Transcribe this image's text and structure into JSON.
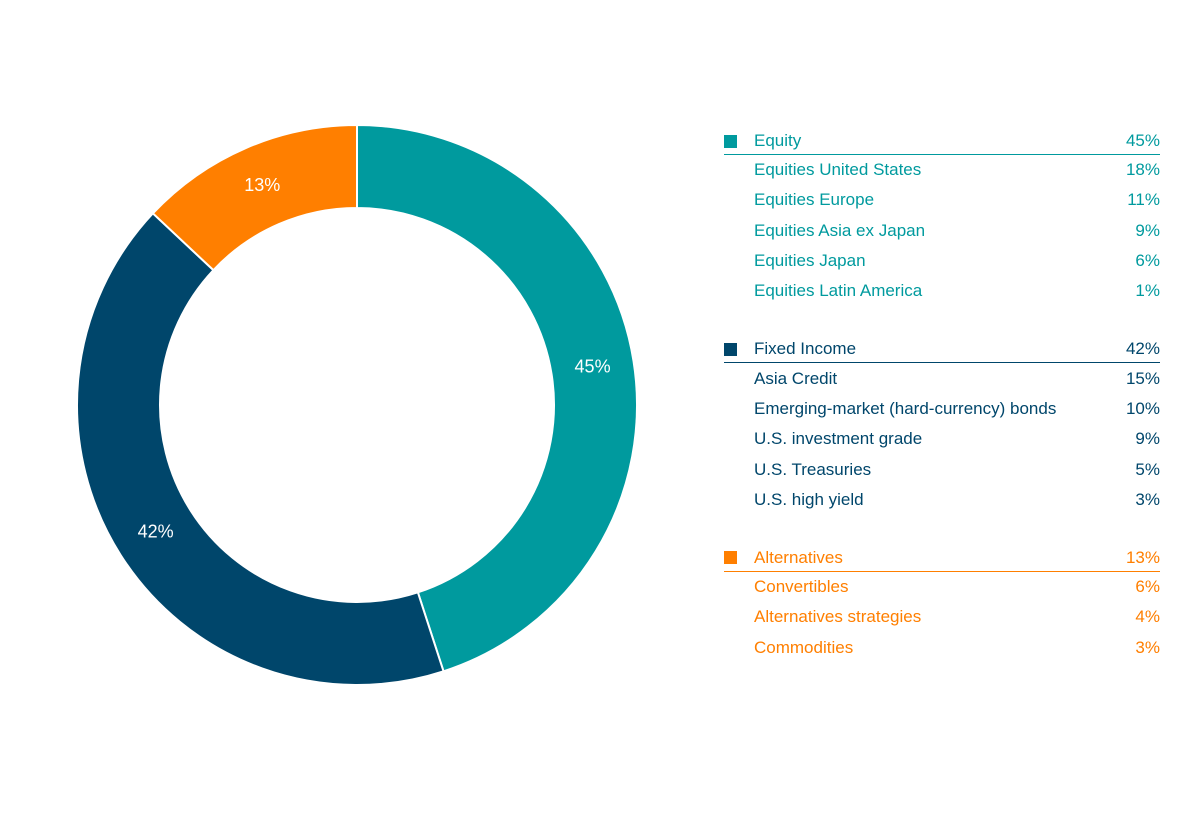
{
  "chart_data": {
    "type": "pie",
    "subtype": "donut",
    "slices": [
      {
        "label": "Equity",
        "value": 45,
        "value_label": "45%",
        "color": "#009a9e"
      },
      {
        "label": "Fixed Income",
        "value": 42,
        "value_label": "42%",
        "color": "#00466b"
      },
      {
        "label": "Alternatives",
        "value": 13,
        "value_label": "13%",
        "color": "#ff7f00"
      }
    ]
  },
  "legend": {
    "groups": [
      {
        "name": "Equity",
        "total": "45%",
        "color": "#009a9e",
        "items": [
          {
            "label": "Equities United States",
            "value": "18%"
          },
          {
            "label": "Equities Europe",
            "value": "11%"
          },
          {
            "label": "Equities Asia ex Japan",
            "value": "9%"
          },
          {
            "label": "Equities Japan",
            "value": "6%"
          },
          {
            "label": "Equities Latin America",
            "value": "1%"
          }
        ]
      },
      {
        "name": "Fixed Income",
        "total": "42%",
        "color": "#00466b",
        "items": [
          {
            "label": "Asia Credit",
            "value": "15%"
          },
          {
            "label": "Emerging-market (hard-currency) bonds",
            "value": "10%"
          },
          {
            "label": "U.S. investment grade",
            "value": "9%"
          },
          {
            "label": "U.S. Treasuries",
            "value": "5%"
          },
          {
            "label": "U.S. high yield",
            "value": "3%"
          }
        ]
      },
      {
        "name": "Alternatives",
        "total": "13%",
        "color": "#ff7f00",
        "items": [
          {
            "label": "Convertibles",
            "value": "6%"
          },
          {
            "label": "Alternatives strategies",
            "value": "4%"
          },
          {
            "label": "Commodities",
            "value": "3%"
          }
        ]
      }
    ]
  }
}
